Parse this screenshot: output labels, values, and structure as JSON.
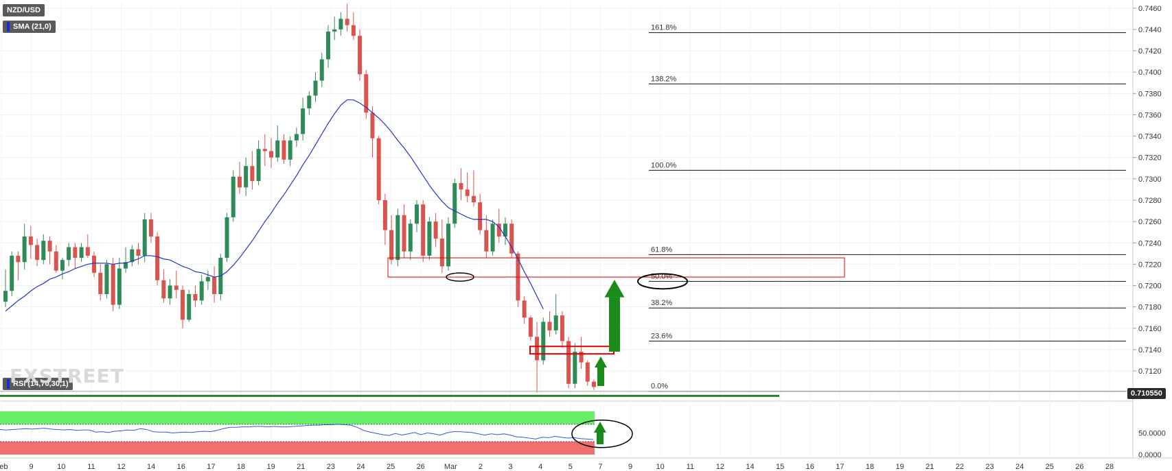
{
  "symbol": "NZD/USD",
  "sma_label": "SMA (21,0)",
  "rsi_label": "RSI (14,70,30,1)",
  "last_price": "0.710550",
  "logo_text": "FXSTREET",
  "colors": {
    "bull": "#2e8b57",
    "bear": "#d9534f",
    "sma": "#2233cc",
    "rsi_line": "#3355dd",
    "overbought_zone": "#66ee66",
    "oversold_zone": "#f07070",
    "arrow": "#1a8a1a",
    "zone_box": "#dd0000",
    "ellipse": "#000000",
    "support_line": "#2f7d2f"
  },
  "chart_data": {
    "type": "candlestick",
    "title": "",
    "price_axis": {
      "ylim": [
        0.7095,
        0.7465
      ],
      "ticks": [
        "0.7460",
        "0.7440",
        "0.7420",
        "0.7400",
        "0.7380",
        "0.7360",
        "0.7340",
        "0.7320",
        "0.7300",
        "0.7280",
        "0.7260",
        "0.7240",
        "0.7220",
        "0.7200",
        "0.7180",
        "0.7160",
        "0.7140",
        "0.7120",
        "0.7100"
      ]
    },
    "x_axis": {
      "ticks": [
        "Feb",
        "9",
        "10",
        "11",
        "12",
        "14",
        "16",
        "17",
        "18",
        "19",
        "21",
        "23",
        "24",
        "25",
        "26",
        "Mar",
        "2",
        "3",
        "4",
        "5",
        "7",
        "9",
        "10",
        "11",
        "12",
        "14",
        "15",
        "16",
        "17",
        "18",
        "19",
        "21",
        "22",
        "23",
        "24",
        "25",
        "26",
        "28"
      ]
    },
    "candles": [
      [
        0.7185,
        0.7215,
        0.718,
        0.7195
      ],
      [
        0.7195,
        0.7232,
        0.719,
        0.7228
      ],
      [
        0.7228,
        0.7232,
        0.7205,
        0.7222
      ],
      [
        0.7222,
        0.7258,
        0.7215,
        0.7246
      ],
      [
        0.7246,
        0.7256,
        0.7225,
        0.7238
      ],
      [
        0.7238,
        0.7244,
        0.7218,
        0.7224
      ],
      [
        0.7224,
        0.7248,
        0.722,
        0.7242
      ],
      [
        0.7242,
        0.7246,
        0.722,
        0.7232
      ],
      [
        0.7232,
        0.7238,
        0.7212,
        0.7214
      ],
      [
        0.7214,
        0.7226,
        0.7206,
        0.7224
      ],
      [
        0.7224,
        0.724,
        0.7218,
        0.7236
      ],
      [
        0.7236,
        0.724,
        0.7216,
        0.7226
      ],
      [
        0.7226,
        0.724,
        0.7222,
        0.7236
      ],
      [
        0.7236,
        0.7248,
        0.7226,
        0.7228
      ],
      [
        0.7228,
        0.7232,
        0.7208,
        0.7212
      ],
      [
        0.7212,
        0.722,
        0.7186,
        0.7192
      ],
      [
        0.7192,
        0.7224,
        0.7188,
        0.722
      ],
      [
        0.722,
        0.7226,
        0.7176,
        0.7182
      ],
      [
        0.7182,
        0.7226,
        0.7178,
        0.7216
      ],
      [
        0.7216,
        0.7236,
        0.7212,
        0.7222
      ],
      [
        0.7222,
        0.7238,
        0.7218,
        0.7234
      ],
      [
        0.7234,
        0.724,
        0.722,
        0.7228
      ],
      [
        0.7228,
        0.7268,
        0.7222,
        0.7262
      ],
      [
        0.7262,
        0.7268,
        0.724,
        0.7246
      ],
      [
        0.7246,
        0.725,
        0.72,
        0.7205
      ],
      [
        0.7205,
        0.7215,
        0.7184,
        0.7188
      ],
      [
        0.7188,
        0.7206,
        0.7182,
        0.72
      ],
      [
        0.72,
        0.7214,
        0.7188,
        0.7196
      ],
      [
        0.7196,
        0.72,
        0.716,
        0.7168
      ],
      [
        0.7168,
        0.7196,
        0.7166,
        0.7192
      ],
      [
        0.7192,
        0.72,
        0.718,
        0.7186
      ],
      [
        0.7186,
        0.721,
        0.7182,
        0.7204
      ],
      [
        0.7204,
        0.7214,
        0.7196,
        0.7208
      ],
      [
        0.7208,
        0.7218,
        0.7184,
        0.7192
      ],
      [
        0.7192,
        0.723,
        0.7186,
        0.7226
      ],
      [
        0.7226,
        0.7268,
        0.7222,
        0.7264
      ],
      [
        0.7264,
        0.7308,
        0.726,
        0.7302
      ],
      [
        0.7302,
        0.7316,
        0.7286,
        0.7292
      ],
      [
        0.7292,
        0.732,
        0.7284,
        0.7312
      ],
      [
        0.7312,
        0.7326,
        0.729,
        0.7298
      ],
      [
        0.7298,
        0.7336,
        0.7294,
        0.7328
      ],
      [
        0.7328,
        0.7342,
        0.7312,
        0.7326
      ],
      [
        0.7326,
        0.7338,
        0.731,
        0.732
      ],
      [
        0.732,
        0.735,
        0.7316,
        0.7336
      ],
      [
        0.7336,
        0.7342,
        0.7314,
        0.7318
      ],
      [
        0.7318,
        0.734,
        0.7312,
        0.7336
      ],
      [
        0.7336,
        0.7348,
        0.733,
        0.7342
      ],
      [
        0.7342,
        0.7376,
        0.7336,
        0.7366
      ],
      [
        0.7366,
        0.7382,
        0.736,
        0.7378
      ],
      [
        0.7378,
        0.74,
        0.7372,
        0.7392
      ],
      [
        0.7392,
        0.7418,
        0.7386,
        0.7412
      ],
      [
        0.7412,
        0.7444,
        0.7404,
        0.7438
      ],
      [
        0.7438,
        0.7452,
        0.743,
        0.744
      ],
      [
        0.744,
        0.7456,
        0.7434,
        0.745
      ],
      [
        0.745,
        0.7464,
        0.7438,
        0.7444
      ],
      [
        0.7444,
        0.7456,
        0.743,
        0.7434
      ],
      [
        0.7434,
        0.744,
        0.7392,
        0.7398
      ],
      [
        0.7398,
        0.7402,
        0.7356,
        0.7362
      ],
      [
        0.7362,
        0.7368,
        0.732,
        0.7338
      ],
      [
        0.7338,
        0.734,
        0.7276,
        0.728
      ],
      [
        0.728,
        0.7286,
        0.7238,
        0.7252
      ],
      [
        0.7252,
        0.7266,
        0.722,
        0.7224
      ],
      [
        0.7224,
        0.7272,
        0.7218,
        0.7266
      ],
      [
        0.7266,
        0.7276,
        0.7226,
        0.7232
      ],
      [
        0.7232,
        0.7262,
        0.7224,
        0.7258
      ],
      [
        0.7258,
        0.728,
        0.725,
        0.7276
      ],
      [
        0.7276,
        0.728,
        0.7222,
        0.7228
      ],
      [
        0.7228,
        0.7264,
        0.7224,
        0.726
      ],
      [
        0.726,
        0.7268,
        0.7236,
        0.7244
      ],
      [
        0.7244,
        0.7262,
        0.7212,
        0.7218
      ],
      [
        0.7218,
        0.7264,
        0.7214,
        0.7258
      ],
      [
        0.7258,
        0.73,
        0.7254,
        0.7296
      ],
      [
        0.7296,
        0.731,
        0.728,
        0.729
      ],
      [
        0.729,
        0.7306,
        0.7278,
        0.7284
      ],
      [
        0.7284,
        0.7308,
        0.7274,
        0.7278
      ],
      [
        0.7278,
        0.7286,
        0.7248,
        0.7252
      ],
      [
        0.7252,
        0.7266,
        0.7226,
        0.7232
      ],
      [
        0.7232,
        0.7262,
        0.7228,
        0.7258
      ],
      [
        0.7258,
        0.7272,
        0.724,
        0.7246
      ],
      [
        0.7246,
        0.7264,
        0.7238,
        0.7258
      ],
      [
        0.7258,
        0.7262,
        0.7226,
        0.723
      ],
      [
        0.723,
        0.7232,
        0.718,
        0.7186
      ],
      [
        0.7186,
        0.719,
        0.7164,
        0.717
      ],
      [
        0.717,
        0.7172,
        0.7148,
        0.7152
      ],
      [
        0.7152,
        0.7166,
        0.71,
        0.713
      ],
      [
        0.713,
        0.717,
        0.7126,
        0.7166
      ],
      [
        0.7166,
        0.7176,
        0.7152,
        0.7158
      ],
      [
        0.7158,
        0.7192,
        0.7154,
        0.7172
      ],
      [
        0.7172,
        0.7176,
        0.7142,
        0.7148
      ],
      [
        0.7148,
        0.7152,
        0.7104,
        0.7108
      ],
      [
        0.7108,
        0.7146,
        0.7104,
        0.7138
      ],
      [
        0.7138,
        0.7152,
        0.7122,
        0.7128
      ],
      [
        0.7128,
        0.713,
        0.7106,
        0.711
      ],
      [
        0.711,
        0.7112,
        0.7102,
        0.7105
      ]
    ],
    "sma": [
      0.7176,
      0.7181,
      0.7186,
      0.719,
      0.7195,
      0.7199,
      0.7202,
      0.7206,
      0.7208,
      0.7211,
      0.7213,
      0.7216,
      0.7218,
      0.722,
      0.7221,
      0.7221,
      0.7221,
      0.722,
      0.7221,
      0.7221,
      0.7223,
      0.7225,
      0.7228,
      0.7228,
      0.7227,
      0.7225,
      0.7224,
      0.7221,
      0.7218,
      0.7216,
      0.7213,
      0.7212,
      0.721,
      0.7208,
      0.7209,
      0.7213,
      0.7219,
      0.7226,
      0.7234,
      0.7242,
      0.7251,
      0.726,
      0.7268,
      0.7277,
      0.7285,
      0.7294,
      0.7303,
      0.7313,
      0.7322,
      0.7332,
      0.7342,
      0.7352,
      0.7361,
      0.7369,
      0.7374,
      0.7374,
      0.7371,
      0.7367,
      0.7362,
      0.7357,
      0.7351,
      0.7344,
      0.7336,
      0.7329,
      0.7321,
      0.7312,
      0.7303,
      0.7294,
      0.7286,
      0.7279,
      0.7273,
      0.727,
      0.7267,
      0.7264,
      0.7262,
      0.7262,
      0.7262,
      0.726,
      0.7255,
      0.7246,
      0.7236,
      0.7225,
      0.7213,
      0.7202,
      0.719,
      0.7178
    ],
    "fibonacci": [
      {
        "label": "161.8%",
        "price": 0.7437
      },
      {
        "label": "138.2%",
        "price": 0.7389
      },
      {
        "label": "100.0%",
        "price": 0.7308
      },
      {
        "label": "61.8%",
        "price": 0.7229
      },
      {
        "label": "50.0%",
        "price": 0.7204
      },
      {
        "label": "38.2%",
        "price": 0.7179
      },
      {
        "label": "23.6%",
        "price": 0.7148
      },
      {
        "label": "0.0%",
        "price": 0.7101
      }
    ],
    "rsi": {
      "ticks": [
        "50.0000",
        "0.0000"
      ],
      "levels": {
        "overbought": 70,
        "oversold": 30
      },
      "values": [
        58,
        57,
        58,
        59,
        60,
        59,
        60,
        61,
        59,
        58,
        57,
        58,
        56,
        57,
        57,
        52,
        53,
        51,
        54,
        55,
        57,
        56,
        60,
        58,
        53,
        52,
        52,
        50,
        51,
        52,
        51,
        53,
        54,
        53,
        56,
        60,
        63,
        63,
        64,
        64,
        65,
        65,
        64,
        65,
        64,
        64,
        65,
        66,
        67,
        68,
        68,
        69,
        69,
        70,
        69,
        68,
        63,
        56,
        52,
        49,
        46,
        44,
        49,
        45,
        48,
        51,
        46,
        50,
        48,
        45,
        50,
        53,
        53,
        52,
        51,
        48,
        45,
        48,
        46,
        48,
        45,
        41,
        40,
        38,
        36,
        40,
        39,
        42,
        40,
        38,
        39,
        37,
        36,
        35
      ]
    }
  }
}
